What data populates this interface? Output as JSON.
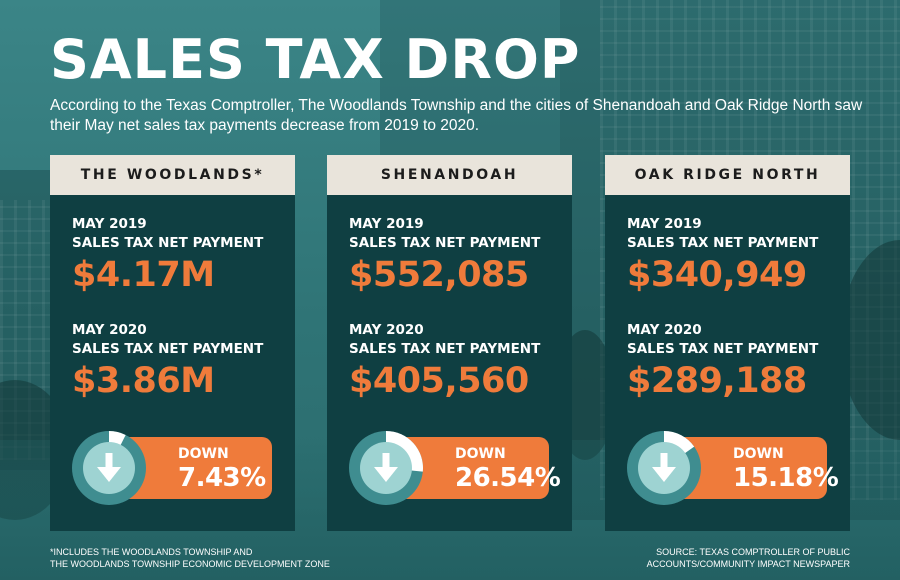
{
  "title": "SALES TAX DROP",
  "subtitle": "According to the Texas Comptroller, The Woodlands Township and the cities of Shenandoah and Oak Ridge North saw their May net sales tax payments decrease from 2019 to 2020.",
  "cards": [
    {
      "name": "THE WOODLANDS*",
      "label_2019_year": "MAY 2019",
      "label_2019_text": "SALES TAX NET PAYMENT",
      "value_2019": "$4.17M",
      "label_2020_year": "MAY 2020",
      "label_2020_text": "SALES TAX NET PAYMENT",
      "value_2020": "$3.86M",
      "down_label": "DOWN",
      "down_pct": "7.43%",
      "decrease_fraction": 0.0743
    },
    {
      "name": "SHENANDOAH",
      "label_2019_year": "MAY 2019",
      "label_2019_text": "SALES TAX NET PAYMENT",
      "value_2019": "$552,085",
      "label_2020_year": "MAY 2020",
      "label_2020_text": "SALES TAX NET PAYMENT",
      "value_2020": "$405,560",
      "down_label": "DOWN",
      "down_pct": "26.54%",
      "decrease_fraction": 0.2654
    },
    {
      "name": "OAK RIDGE NORTH",
      "label_2019_year": "MAY 2019",
      "label_2019_text": "SALES TAX NET PAYMENT",
      "value_2019": "$340,949",
      "label_2020_year": "MAY 2020",
      "label_2020_text": "SALES TAX NET PAYMENT",
      "value_2020": "$289,188",
      "down_label": "DOWN",
      "down_pct": "15.18%",
      "decrease_fraction": 0.1518
    }
  ],
  "footnote_line1": "*INCLUDES THE WOODLANDS TOWNSHIP AND",
  "footnote_line2": "THE WOODLANDS TOWNSHIP ECONOMIC DEVELOPMENT ZONE",
  "source_line1": "SOURCE: TEXAS COMPTROLLER OF PUBLIC",
  "source_line2": "ACCOUNTS/COMMUNITY IMPACT NEWSPAPER",
  "colors": {
    "accent": "#ef7b3b",
    "card_bg": "#0f3f42",
    "header_bg": "#e9e4db",
    "gauge_track": "#3f8d90",
    "gauge_fill": "#ffffff",
    "gauge_inner": "#9ed3d2"
  },
  "icon": "down-arrow-icon"
}
